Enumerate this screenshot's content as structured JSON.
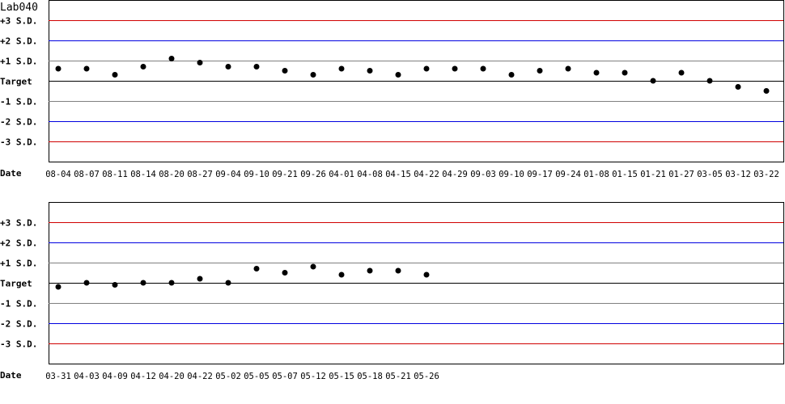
{
  "title": "Lab040",
  "colors": {
    "sd3": "#d00000",
    "sd2": "#0000e0",
    "sd1": "#808080",
    "target": "#000000",
    "point": "#000000"
  },
  "chart_data": [
    {
      "type": "scatter",
      "title": "Lab040",
      "xlabel": "Date",
      "y_tick_labels": [
        "+3 S.D.",
        "+2 S.D.",
        "+1 S.D.",
        "Target",
        "-1 S.D.",
        "-2 S.D.",
        "-3 S.D."
      ],
      "ylim": [
        -4,
        4
      ],
      "categories": [
        "08-04",
        "08-07",
        "08-11",
        "08-14",
        "08-20",
        "08-27",
        "09-04",
        "09-10",
        "09-21",
        "09-26",
        "04-01",
        "04-08",
        "04-15",
        "04-22",
        "04-29",
        "09-03",
        "09-10",
        "09-17",
        "09-24",
        "01-08",
        "01-15",
        "01-21",
        "01-27",
        "03-05",
        "03-12",
        "03-22"
      ],
      "values": [
        0.6,
        0.6,
        0.3,
        0.7,
        1.1,
        0.9,
        0.7,
        0.7,
        0.5,
        0.3,
        0.6,
        0.5,
        0.3,
        0.6,
        0.6,
        0.6,
        0.3,
        0.5,
        0.6,
        0.4,
        0.4,
        0.0,
        0.4,
        0.0,
        -0.3,
        -0.5
      ]
    },
    {
      "type": "scatter",
      "xlabel": "Date",
      "y_tick_labels": [
        "+3 S.D.",
        "+2 S.D.",
        "+1 S.D.",
        "Target",
        "-1 S.D.",
        "-2 S.D.",
        "-3 S.D."
      ],
      "ylim": [
        -4,
        4
      ],
      "categories": [
        "03-31",
        "04-03",
        "04-09",
        "04-12",
        "04-20",
        "04-22",
        "05-02",
        "05-05",
        "05-07",
        "05-12",
        "05-15",
        "05-18",
        "05-21",
        "05-26"
      ],
      "values": [
        -0.2,
        0.0,
        -0.1,
        0.0,
        0.0,
        0.2,
        0.0,
        0.7,
        0.5,
        0.8,
        0.4,
        0.6,
        0.6,
        0.4
      ]
    }
  ]
}
